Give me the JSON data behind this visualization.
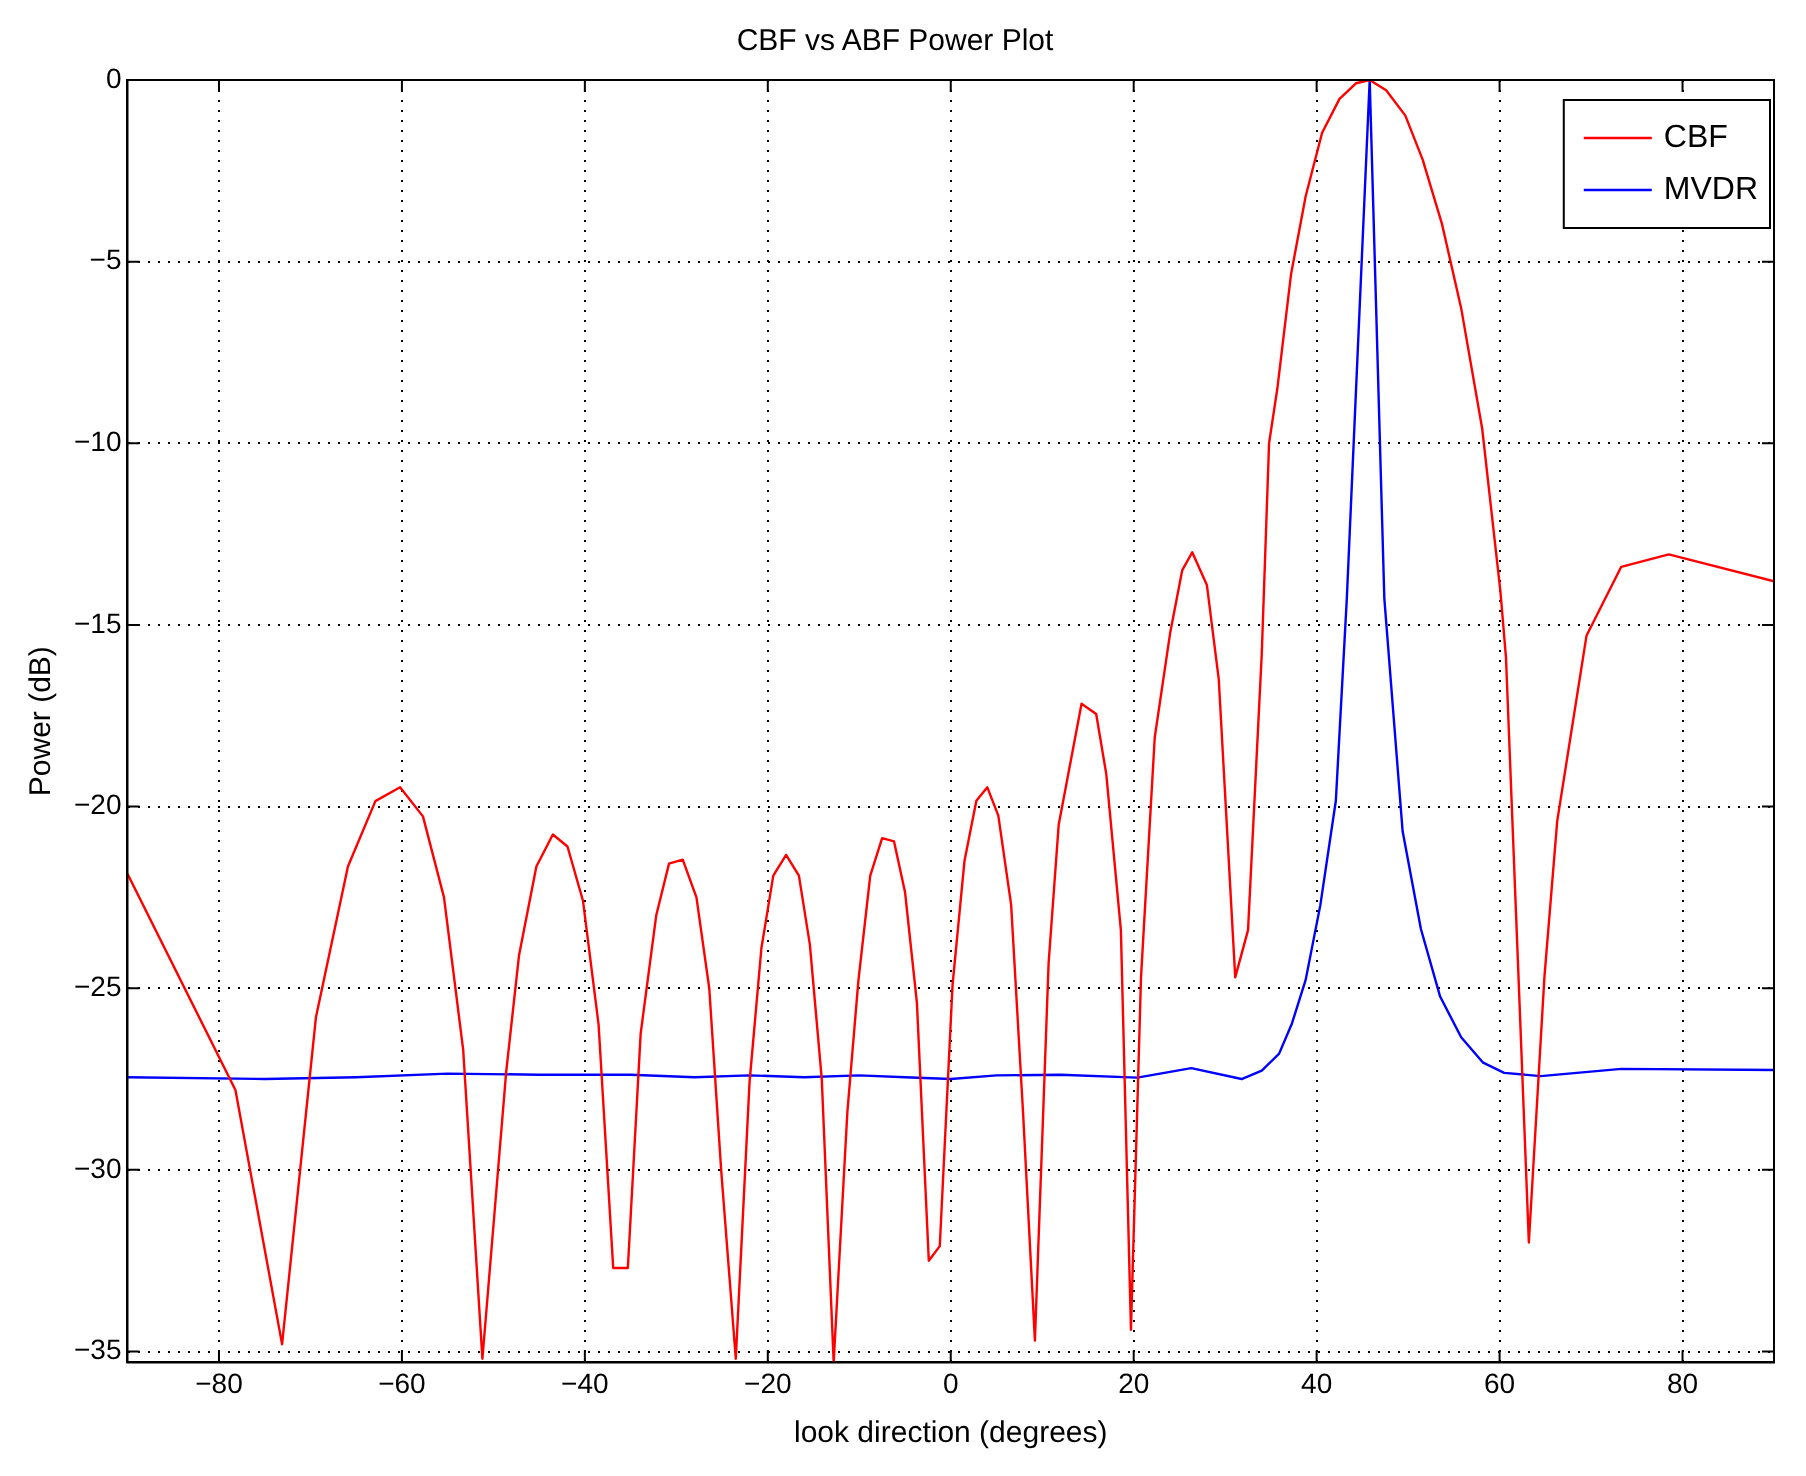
{
  "chart_data": {
    "type": "line",
    "title": "CBF vs ABF Power Plot",
    "xlabel": "look direction (degrees)",
    "ylabel": "Power (dB)",
    "xlim": [
      -90,
      90
    ],
    "xticks": [
      -80,
      -60,
      -40,
      -20,
      0,
      20,
      40,
      60,
      80
    ],
    "ylim": [
      -35.3,
      0
    ],
    "yticks": [
      -35,
      -30,
      -25,
      -20,
      -15,
      -10,
      -5,
      0
    ],
    "grid": true,
    "legend": "top right",
    "marker": "none",
    "line_style": "solid",
    "series": [
      {
        "name": "CBF",
        "color": "#ff0000",
        "x": [
          -90,
          -78.2,
          -73.1,
          -69.4,
          -65.9,
          -62.9,
          -60.2,
          -57.7,
          -55.4,
          -53.3,
          -51.2,
          -48.6,
          -47.2,
          -45.3,
          -43.5,
          -41.9,
          -40.2,
          -38.5,
          -36.9,
          -35.3,
          -33.9,
          -32.2,
          -30.8,
          -29.3,
          -27.8,
          -26.4,
          -25.1,
          -23.5,
          -22.0,
          -20.7,
          -19.4,
          -18.0,
          -16.6,
          -15.4,
          -14.1,
          -12.8,
          -11.3,
          -10.1,
          -8.8,
          -7.5,
          -6.2,
          -5.0,
          -3.7,
          -2.4,
          -1.2,
          0.2,
          1.5,
          2.8,
          4.0,
          5.2,
          6.6,
          7.9,
          9.2,
          10.7,
          11.8,
          14.3,
          15.9,
          17.0,
          18.6,
          19.7,
          20.8,
          22.3,
          24.0,
          25.3,
          26.4,
          28.0,
          29.3,
          31.1,
          32.5,
          34.0,
          34.8,
          35.7,
          37.2,
          38.8,
          40.6,
          42.5,
          44.3,
          45.8,
          47.6,
          49.7,
          51.6,
          53.7,
          55.8,
          58.1,
          60.1,
          60.7,
          61.9,
          63.2,
          64.9,
          66.3,
          69.5,
          73.3,
          78.5,
          90
        ],
        "values": [
          -21.85,
          -27.8,
          -34.8,
          -25.8,
          -21.65,
          -19.85,
          -19.47,
          -20.27,
          -22.5,
          -26.7,
          -35.2,
          -27.3,
          -24.1,
          -21.65,
          -20.77,
          -21.1,
          -22.6,
          -26.0,
          -32.7,
          -32.7,
          -26.25,
          -23.0,
          -21.57,
          -21.46,
          -22.5,
          -25.0,
          -30.0,
          -35.2,
          -27.6,
          -23.9,
          -21.9,
          -21.33,
          -21.9,
          -23.8,
          -27.5,
          -35.3,
          -28.4,
          -24.8,
          -21.9,
          -20.87,
          -20.96,
          -22.35,
          -25.4,
          -32.5,
          -32.1,
          -24.9,
          -21.5,
          -19.84,
          -19.47,
          -20.25,
          -22.7,
          -28.4,
          -34.7,
          -24.3,
          -20.5,
          -17.17,
          -17.45,
          -19.1,
          -23.4,
          -34.4,
          -24.7,
          -18.1,
          -15.2,
          -13.5,
          -13.0,
          -13.9,
          -16.5,
          -24.7,
          -23.4,
          -15.8,
          -10.0,
          -8.5,
          -5.35,
          -3.2,
          -1.45,
          -0.52,
          -0.09,
          0,
          -0.28,
          -0.98,
          -2.2,
          -3.96,
          -6.28,
          -9.6,
          -14.1,
          -15.9,
          -23.6,
          -32.0,
          -24.7,
          -20.4,
          -15.3,
          -13.4,
          -13.06,
          -13.8
        ]
      },
      {
        "name": "MVDR",
        "color": "#0000ff",
        "x": [
          -90,
          -75,
          -65,
          -55,
          -45,
          -35,
          -28,
          -22,
          -16,
          -10,
          -5,
          0,
          5,
          12,
          20.4,
          26.3,
          31.8,
          34.0,
          35.9,
          37.3,
          38.8,
          40.4,
          42.1,
          43.3,
          45.8,
          47.4,
          49.4,
          51.4,
          53.5,
          55.8,
          58.2,
          60.5,
          64.5,
          73.3,
          90
        ],
        "values": [
          -27.45,
          -27.5,
          -27.45,
          -27.35,
          -27.38,
          -27.38,
          -27.45,
          -27.4,
          -27.45,
          -27.4,
          -27.45,
          -27.5,
          -27.4,
          -27.38,
          -27.46,
          -27.2,
          -27.5,
          -27.27,
          -26.8,
          -25.97,
          -24.77,
          -22.72,
          -19.84,
          -14.27,
          0,
          -14.27,
          -20.68,
          -23.37,
          -25.23,
          -26.35,
          -27.05,
          -27.33,
          -27.42,
          -27.22,
          -27.25
        ]
      }
    ]
  }
}
